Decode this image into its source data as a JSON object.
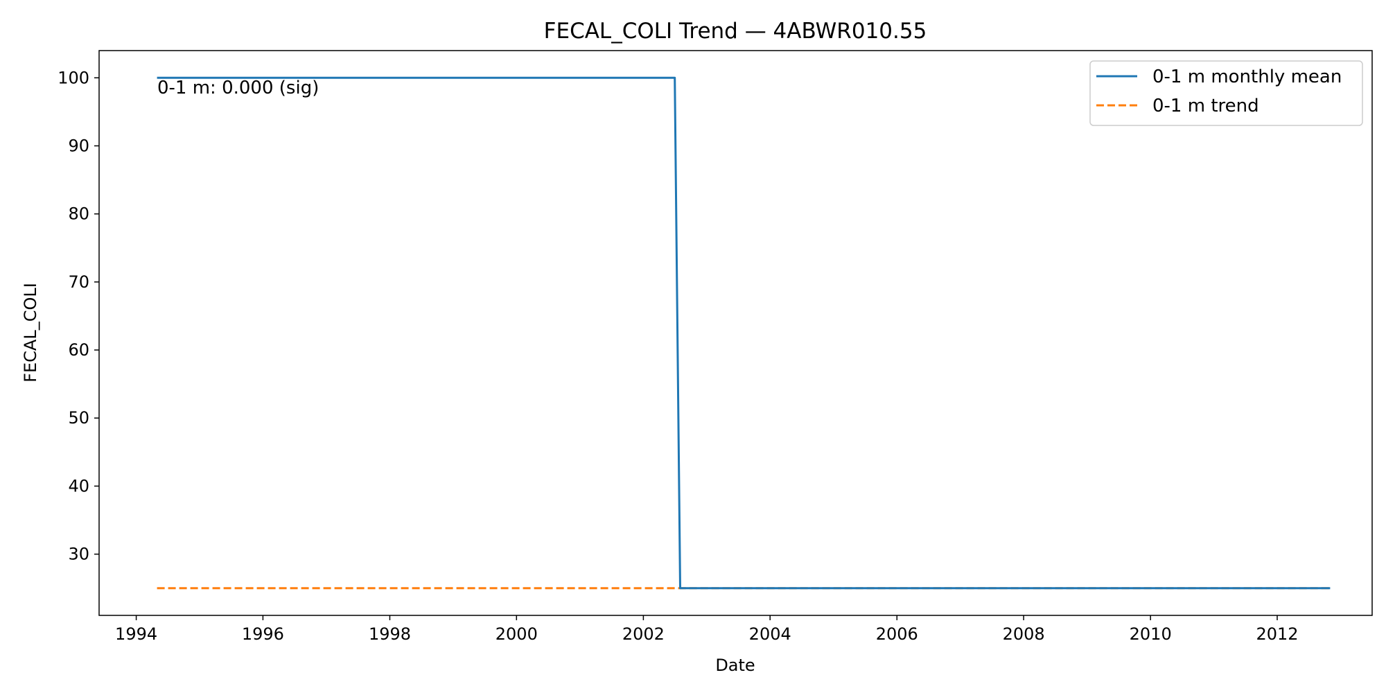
{
  "chart_data": {
    "type": "line",
    "title": "FECAL_COLI Trend — 4ABWR010.55",
    "xlabel": "Date",
    "ylabel": "FECAL_COLI",
    "xlim": [
      "1993-06-01",
      "2013-07-01"
    ],
    "ylim": [
      21,
      104
    ],
    "x_ticks": [
      "1994",
      "1996",
      "1998",
      "2000",
      "2002",
      "2004",
      "2006",
      "2008",
      "2010",
      "2012"
    ],
    "y_ticks": [
      30,
      40,
      50,
      60,
      70,
      80,
      90,
      100
    ],
    "grid": false,
    "legend_position": "top-right",
    "series": [
      {
        "name": "0-1 m monthly mean",
        "style": "solid",
        "color": "#1f77b4",
        "points": [
          {
            "x": "1994-05-01",
            "y": 100
          },
          {
            "x": "2002-07-01",
            "y": 100
          },
          {
            "x": "2002-08-01",
            "y": 25
          },
          {
            "x": "2012-11-01",
            "y": 25
          }
        ]
      },
      {
        "name": "0-1 m trend",
        "style": "dashed",
        "color": "#ff7f0e",
        "points": [
          {
            "x": "1994-05-01",
            "y": 25
          },
          {
            "x": "2012-11-01",
            "y": 25
          }
        ]
      }
    ],
    "annotations": [
      {
        "text": "0-1 m: 0.000 (sig)",
        "position": "top-left"
      }
    ]
  }
}
